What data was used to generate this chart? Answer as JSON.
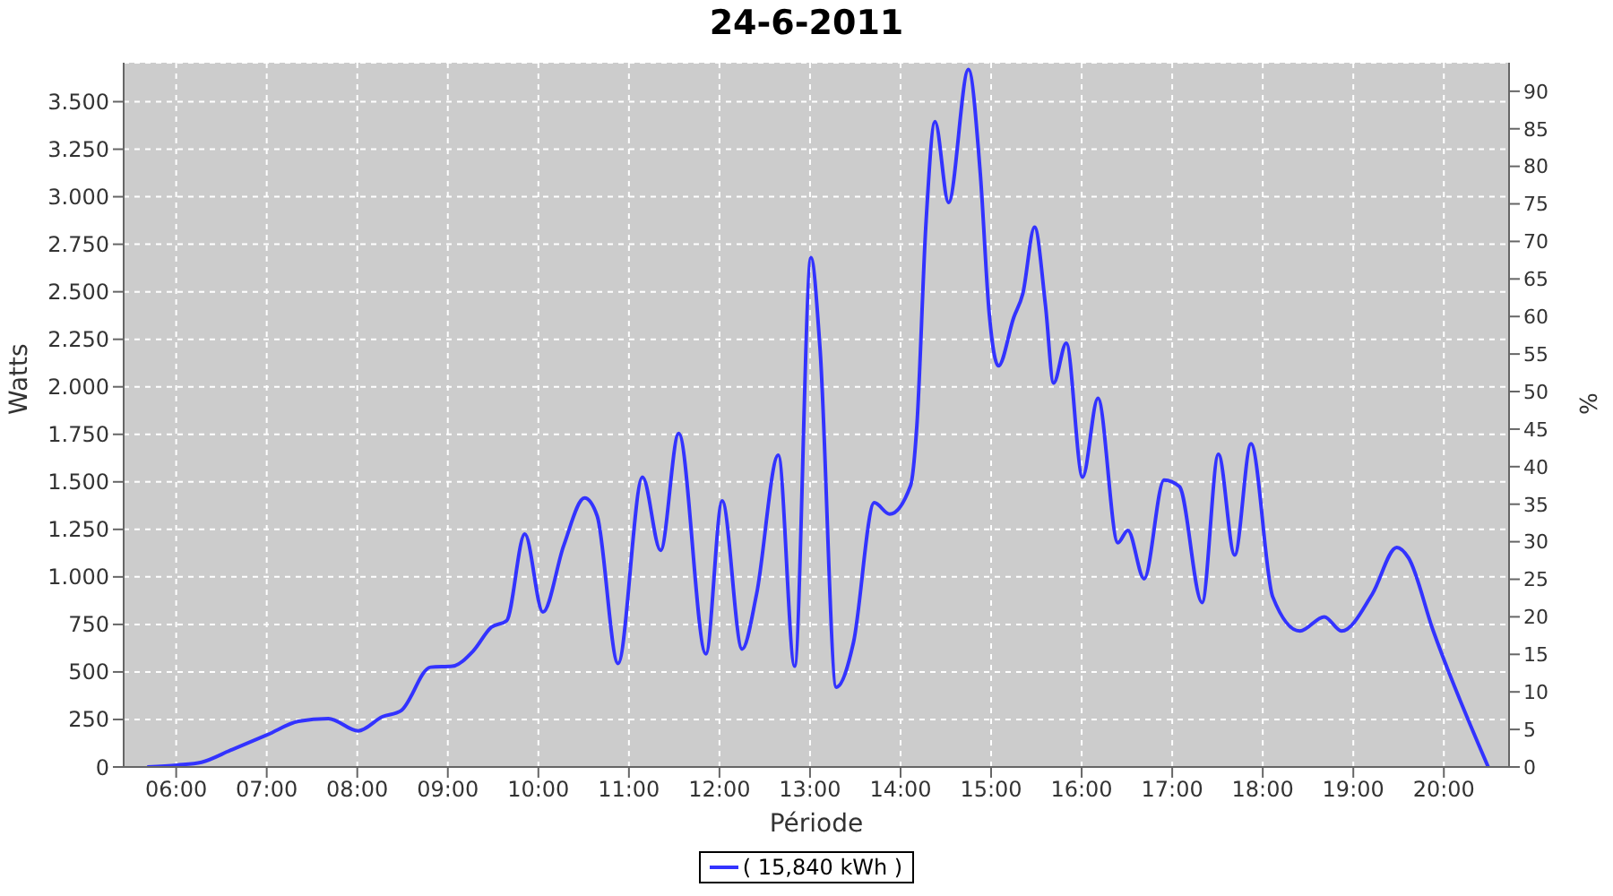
{
  "chart_data": {
    "type": "line",
    "title": "24-6-2011",
    "xlabel": "Période",
    "ylabel": "Watts",
    "y2label": "%",
    "x": [
      5.68,
      6.01,
      6.28,
      6.61,
      7.01,
      7.35,
      7.68,
      8.01,
      8.28,
      8.48,
      8.81,
      9.05,
      9.28,
      9.48,
      9.65,
      9.85,
      10.05,
      10.28,
      10.51,
      10.65,
      10.88,
      11.15,
      11.35,
      11.55,
      11.85,
      12.03,
      12.25,
      12.41,
      12.65,
      12.83,
      13.01,
      13.11,
      13.29,
      13.48,
      13.71,
      13.88,
      14.11,
      14.18,
      14.28,
      14.38,
      14.53,
      14.75,
      14.88,
      14.98,
      15.08,
      15.25,
      15.35,
      15.48,
      15.6,
      15.69,
      15.83,
      16.01,
      16.18,
      16.4,
      16.51,
      16.69,
      16.91,
      17.08,
      17.33,
      17.51,
      17.69,
      17.87,
      18.11,
      18.41,
      18.68,
      18.87,
      19.21,
      19.48,
      19.61,
      19.88,
      20.49
    ],
    "series": [
      {
        "name": "( 15,840 kWh )",
        "color": "#3333ff",
        "values": [
          0,
          10,
          25,
          90,
          170,
          240,
          255,
          190,
          265,
          295,
          525,
          530,
          610,
          735,
          770,
          1225,
          815,
          1165,
          1415,
          1320,
          545,
          1525,
          1140,
          1755,
          595,
          1400,
          620,
          910,
          1640,
          530,
          2680,
          2205,
          420,
          655,
          1390,
          1330,
          1480,
          1795,
          2855,
          3395,
          2970,
          3670,
          3125,
          2380,
          2110,
          2365,
          2490,
          2840,
          2430,
          2020,
          2230,
          1525,
          1940,
          1180,
          1245,
          990,
          1510,
          1475,
          865,
          1645,
          1115,
          1700,
          895,
          715,
          790,
          715,
          910,
          1155,
          1100,
          720,
          0
        ]
      }
    ],
    "xlim": [
      5.42,
      20.72
    ],
    "xticks": [
      {
        "value": 6,
        "label": "06:00"
      },
      {
        "value": 7,
        "label": "07:00"
      },
      {
        "value": 8,
        "label": "08:00"
      },
      {
        "value": 9,
        "label": "09:00"
      },
      {
        "value": 10,
        "label": "10:00"
      },
      {
        "value": 11,
        "label": "11:00"
      },
      {
        "value": 12,
        "label": "12:00"
      },
      {
        "value": 13,
        "label": "13:00"
      },
      {
        "value": 14,
        "label": "14:00"
      },
      {
        "value": 15,
        "label": "15:00"
      },
      {
        "value": 16,
        "label": "16:00"
      },
      {
        "value": 17,
        "label": "17:00"
      },
      {
        "value": 18,
        "label": "18:00"
      },
      {
        "value": 19,
        "label": "19:00"
      },
      {
        "value": 20,
        "label": "20:00"
      }
    ],
    "ylim": [
      0,
      3705
    ],
    "yticks": [
      0,
      250,
      500,
      750,
      {
        "value": 1000,
        "label": "1.000"
      },
      {
        "value": 1250,
        "label": "1.250"
      },
      {
        "value": 1500,
        "label": "1.500"
      },
      {
        "value": 1750,
        "label": "1.750"
      },
      {
        "value": 2000,
        "label": "2.000"
      },
      {
        "value": 2250,
        "label": "2.250"
      },
      {
        "value": 2500,
        "label": "2.500"
      },
      {
        "value": 2750,
        "label": "2.750"
      },
      {
        "value": 3000,
        "label": "3.000"
      },
      {
        "value": 3250,
        "label": "3.250"
      },
      {
        "value": 3500,
        "label": "3.500"
      }
    ],
    "y2lim": [
      0,
      93.8
    ],
    "y2ticks": [
      0,
      5,
      10,
      15,
      20,
      25,
      30,
      35,
      40,
      45,
      50,
      55,
      60,
      65,
      70,
      75,
      80,
      85,
      90
    ],
    "grid": true,
    "legend": "bottom",
    "marker": "none",
    "line_style": "solid"
  }
}
